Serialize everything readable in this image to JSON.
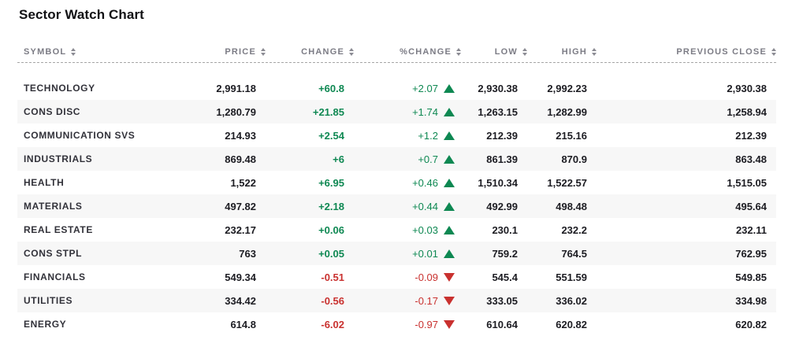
{
  "title": "Sector Watch Chart",
  "colors": {
    "positive": "#0e8852",
    "negative": "#c9312f",
    "header_text": "#7c7c85",
    "stripe": "#f7f7f7"
  },
  "table": {
    "columns": [
      {
        "key": "symbol",
        "label": "SYMBOL",
        "align": "left"
      },
      {
        "key": "price",
        "label": "PRICE",
        "align": "right"
      },
      {
        "key": "change",
        "label": "CHANGE",
        "align": "right"
      },
      {
        "key": "pct_change",
        "label": "%CHANGE",
        "align": "right"
      },
      {
        "key": "low",
        "label": "LOW",
        "align": "right"
      },
      {
        "key": "high",
        "label": "HIGH",
        "align": "right"
      },
      {
        "key": "prev_close",
        "label": "PREVIOUS CLOSE",
        "align": "right"
      }
    ],
    "rows": [
      {
        "symbol": "TECHNOLOGY",
        "price": "2,991.18",
        "change": "+60.8",
        "pct_change": "+2.07",
        "direction": "up",
        "low": "2,930.38",
        "high": "2,992.23",
        "prev_close": "2,930.38"
      },
      {
        "symbol": "CONS DISC",
        "price": "1,280.79",
        "change": "+21.85",
        "pct_change": "+1.74",
        "direction": "up",
        "low": "1,263.15",
        "high": "1,282.99",
        "prev_close": "1,258.94"
      },
      {
        "symbol": "COMMUNICATION SVS",
        "price": "214.93",
        "change": "+2.54",
        "pct_change": "+1.2",
        "direction": "up",
        "low": "212.39",
        "high": "215.16",
        "prev_close": "212.39"
      },
      {
        "symbol": "INDUSTRIALS",
        "price": "869.48",
        "change": "+6",
        "pct_change": "+0.7",
        "direction": "up",
        "low": "861.39",
        "high": "870.9",
        "prev_close": "863.48"
      },
      {
        "symbol": "HEALTH",
        "price": "1,522",
        "change": "+6.95",
        "pct_change": "+0.46",
        "direction": "up",
        "low": "1,510.34",
        "high": "1,522.57",
        "prev_close": "1,515.05"
      },
      {
        "symbol": "MATERIALS",
        "price": "497.82",
        "change": "+2.18",
        "pct_change": "+0.44",
        "direction": "up",
        "low": "492.99",
        "high": "498.48",
        "prev_close": "495.64"
      },
      {
        "symbol": "REAL ESTATE",
        "price": "232.17",
        "change": "+0.06",
        "pct_change": "+0.03",
        "direction": "up",
        "low": "230.1",
        "high": "232.2",
        "prev_close": "232.11"
      },
      {
        "symbol": "CONS STPL",
        "price": "763",
        "change": "+0.05",
        "pct_change": "+0.01",
        "direction": "up",
        "low": "759.2",
        "high": "764.5",
        "prev_close": "762.95"
      },
      {
        "symbol": "FINANCIALS",
        "price": "549.34",
        "change": "-0.51",
        "pct_change": "-0.09",
        "direction": "down",
        "low": "545.4",
        "high": "551.59",
        "prev_close": "549.85"
      },
      {
        "symbol": "UTILITIES",
        "price": "334.42",
        "change": "-0.56",
        "pct_change": "-0.17",
        "direction": "down",
        "low": "333.05",
        "high": "336.02",
        "prev_close": "334.98"
      },
      {
        "symbol": "ENERGY",
        "price": "614.8",
        "change": "-6.02",
        "pct_change": "-0.97",
        "direction": "down",
        "low": "610.64",
        "high": "620.82",
        "prev_close": "620.82"
      }
    ]
  }
}
